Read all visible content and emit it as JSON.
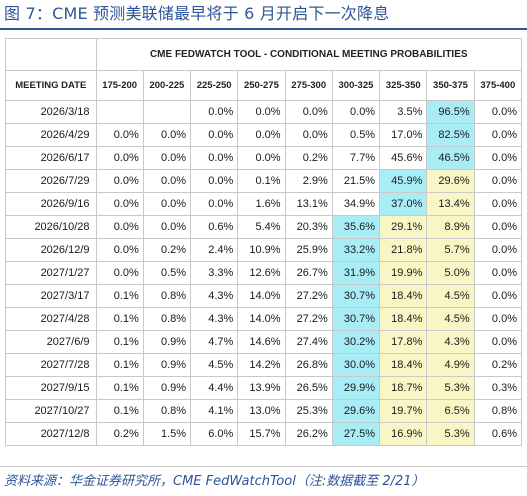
{
  "title": "图 7：CME 预测美联储最早将于 6 月开启下一次降息",
  "table_title": "CME FEDWATCH TOOL - CONDITIONAL MEETING PROBABILITIES",
  "columns": [
    "MEETING DATE",
    "175-200",
    "200-225",
    "225-250",
    "250-275",
    "275-300",
    "300-325",
    "325-350",
    "350-375",
    "375-400"
  ],
  "rows": [
    {
      "date": "2026/3/18",
      "values": [
        "",
        "",
        "0.0%",
        "0.0%",
        "0.0%",
        "0.0%",
        "3.5%",
        "96.5%",
        "0.0%"
      ]
    },
    {
      "date": "2026/4/29",
      "values": [
        "0.0%",
        "0.0%",
        "0.0%",
        "0.0%",
        "0.0%",
        "0.5%",
        "17.0%",
        "82.5%",
        "0.0%"
      ]
    },
    {
      "date": "2026/6/17",
      "values": [
        "0.0%",
        "0.0%",
        "0.0%",
        "0.0%",
        "0.2%",
        "7.7%",
        "45.6%",
        "46.5%",
        "0.0%"
      ]
    },
    {
      "date": "2026/7/29",
      "values": [
        "0.0%",
        "0.0%",
        "0.0%",
        "0.1%",
        "2.9%",
        "21.5%",
        "45.9%",
        "29.6%",
        "0.0%"
      ]
    },
    {
      "date": "2026/9/16",
      "values": [
        "0.0%",
        "0.0%",
        "0.0%",
        "1.6%",
        "13.1%",
        "34.9%",
        "37.0%",
        "13.4%",
        "0.0%"
      ]
    },
    {
      "date": "2026/10/28",
      "values": [
        "0.0%",
        "0.0%",
        "0.6%",
        "5.4%",
        "20.3%",
        "35.6%",
        "29.1%",
        "8.9%",
        "0.0%"
      ]
    },
    {
      "date": "2026/12/9",
      "values": [
        "0.0%",
        "0.2%",
        "2.4%",
        "10.9%",
        "25.9%",
        "33.2%",
        "21.8%",
        "5.7%",
        "0.0%"
      ]
    },
    {
      "date": "2027/1/27",
      "values": [
        "0.0%",
        "0.5%",
        "3.3%",
        "12.6%",
        "26.7%",
        "31.9%",
        "19.9%",
        "5.0%",
        "0.0%"
      ]
    },
    {
      "date": "2027/3/17",
      "values": [
        "0.1%",
        "0.8%",
        "4.3%",
        "14.0%",
        "27.2%",
        "30.7%",
        "18.4%",
        "4.5%",
        "0.0%"
      ]
    },
    {
      "date": "2027/4/28",
      "values": [
        "0.1%",
        "0.8%",
        "4.3%",
        "14.0%",
        "27.2%",
        "30.7%",
        "18.4%",
        "4.5%",
        "0.0%"
      ]
    },
    {
      "date": "2027/6/9",
      "values": [
        "0.1%",
        "0.9%",
        "4.7%",
        "14.6%",
        "27.4%",
        "30.2%",
        "17.8%",
        "4.3%",
        "0.0%"
      ]
    },
    {
      "date": "2027/7/28",
      "values": [
        "0.1%",
        "0.9%",
        "4.5%",
        "14.2%",
        "26.8%",
        "30.0%",
        "18.4%",
        "4.9%",
        "0.2%"
      ]
    },
    {
      "date": "2027/9/15",
      "values": [
        "0.1%",
        "0.9%",
        "4.4%",
        "13.9%",
        "26.5%",
        "29.9%",
        "18.7%",
        "5.3%",
        "0.3%"
      ]
    },
    {
      "date": "2027/10/27",
      "values": [
        "0.1%",
        "0.8%",
        "4.1%",
        "13.0%",
        "25.3%",
        "29.6%",
        "19.7%",
        "6.5%",
        "0.8%"
      ]
    },
    {
      "date": "2027/12/8",
      "values": [
        "0.2%",
        "1.5%",
        "6.0%",
        "15.7%",
        "26.2%",
        "27.5%",
        "16.9%",
        "5.3%",
        "0.6%"
      ]
    }
  ],
  "highlights": {
    "cyan": [
      [
        0,
        7
      ],
      [
        1,
        7
      ],
      [
        2,
        7
      ],
      [
        3,
        6
      ],
      [
        4,
        6
      ],
      [
        5,
        5
      ],
      [
        6,
        5
      ],
      [
        7,
        5
      ],
      [
        8,
        5
      ],
      [
        9,
        5
      ],
      [
        10,
        5
      ],
      [
        11,
        5
      ],
      [
        12,
        5
      ],
      [
        13,
        5
      ],
      [
        14,
        5
      ]
    ],
    "yellow": [
      [
        1,
        7
      ],
      [
        2,
        7
      ],
      [
        3,
        7
      ],
      [
        4,
        7
      ],
      [
        5,
        6
      ],
      [
        5,
        7
      ],
      [
        6,
        6
      ],
      [
        6,
        7
      ],
      [
        7,
        6
      ],
      [
        7,
        7
      ],
      [
        8,
        6
      ],
      [
        8,
        7
      ],
      [
        9,
        6
      ],
      [
        9,
        7
      ],
      [
        10,
        6
      ],
      [
        10,
        7
      ],
      [
        11,
        6
      ],
      [
        11,
        7
      ],
      [
        12,
        6
      ],
      [
        12,
        7
      ],
      [
        13,
        6
      ],
      [
        13,
        7
      ],
      [
        14,
        6
      ],
      [
        14,
        7
      ]
    ]
  },
  "colors": {
    "title": "#2e5597",
    "cyan": "#a8ecf6",
    "yellow": "#f8f6c4",
    "border": "#c9c9c9"
  },
  "source": "资料来源：华金证券研究所，CME FedWatchTool（注:数据截至 2/21）"
}
